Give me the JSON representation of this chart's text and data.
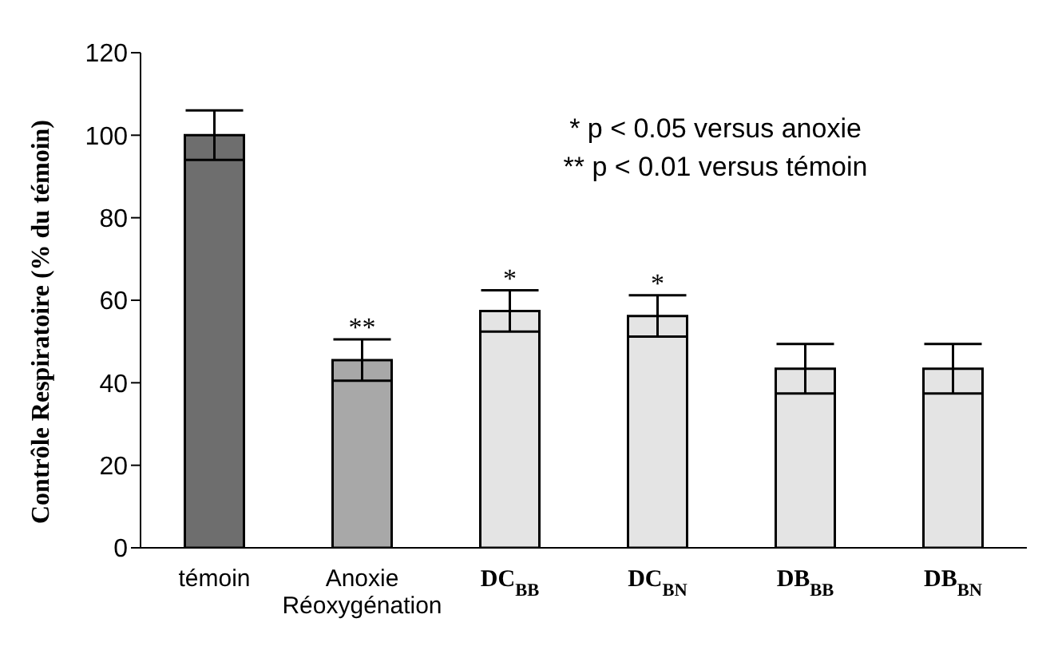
{
  "chart_data": {
    "type": "bar",
    "categories": [
      "témoin",
      "Anoxie Réoxygénation",
      "DC$_{BB}$",
      "DC$_{BN}$",
      "DB$_{BB}$",
      "DB$_{BN}$"
    ],
    "values": [
      100,
      45.5,
      57.4,
      56.2,
      43.4,
      43.4
    ],
    "errors": [
      6,
      5,
      5,
      5,
      6,
      6
    ],
    "colors": [
      "#6e6e6e",
      "#a8a8a8",
      "#e4e4e4",
      "#e4e4e4",
      "#e4e4e4",
      "#e4e4e4"
    ],
    "ylabel": "Contrôle Respiratoire (% du témoin)",
    "ylim": [
      0,
      120
    ],
    "yticks": [
      0,
      20,
      40,
      60,
      80,
      100,
      120
    ],
    "grid": false,
    "legend": false,
    "annotations": [
      "*  p < 0.05 versus anoxie",
      "**  p < 0.01 versus témoin",
      {
        "text": "**",
        "x": "Anoxie Réoxygénation",
        "y": 50.5
      },
      {
        "text": "*",
        "x": "DC$_{BB}$",
        "y": 62.4
      },
      {
        "text": "*",
        "x": "DC$_{BN}$",
        "y": 61.2
      }
    ]
  }
}
